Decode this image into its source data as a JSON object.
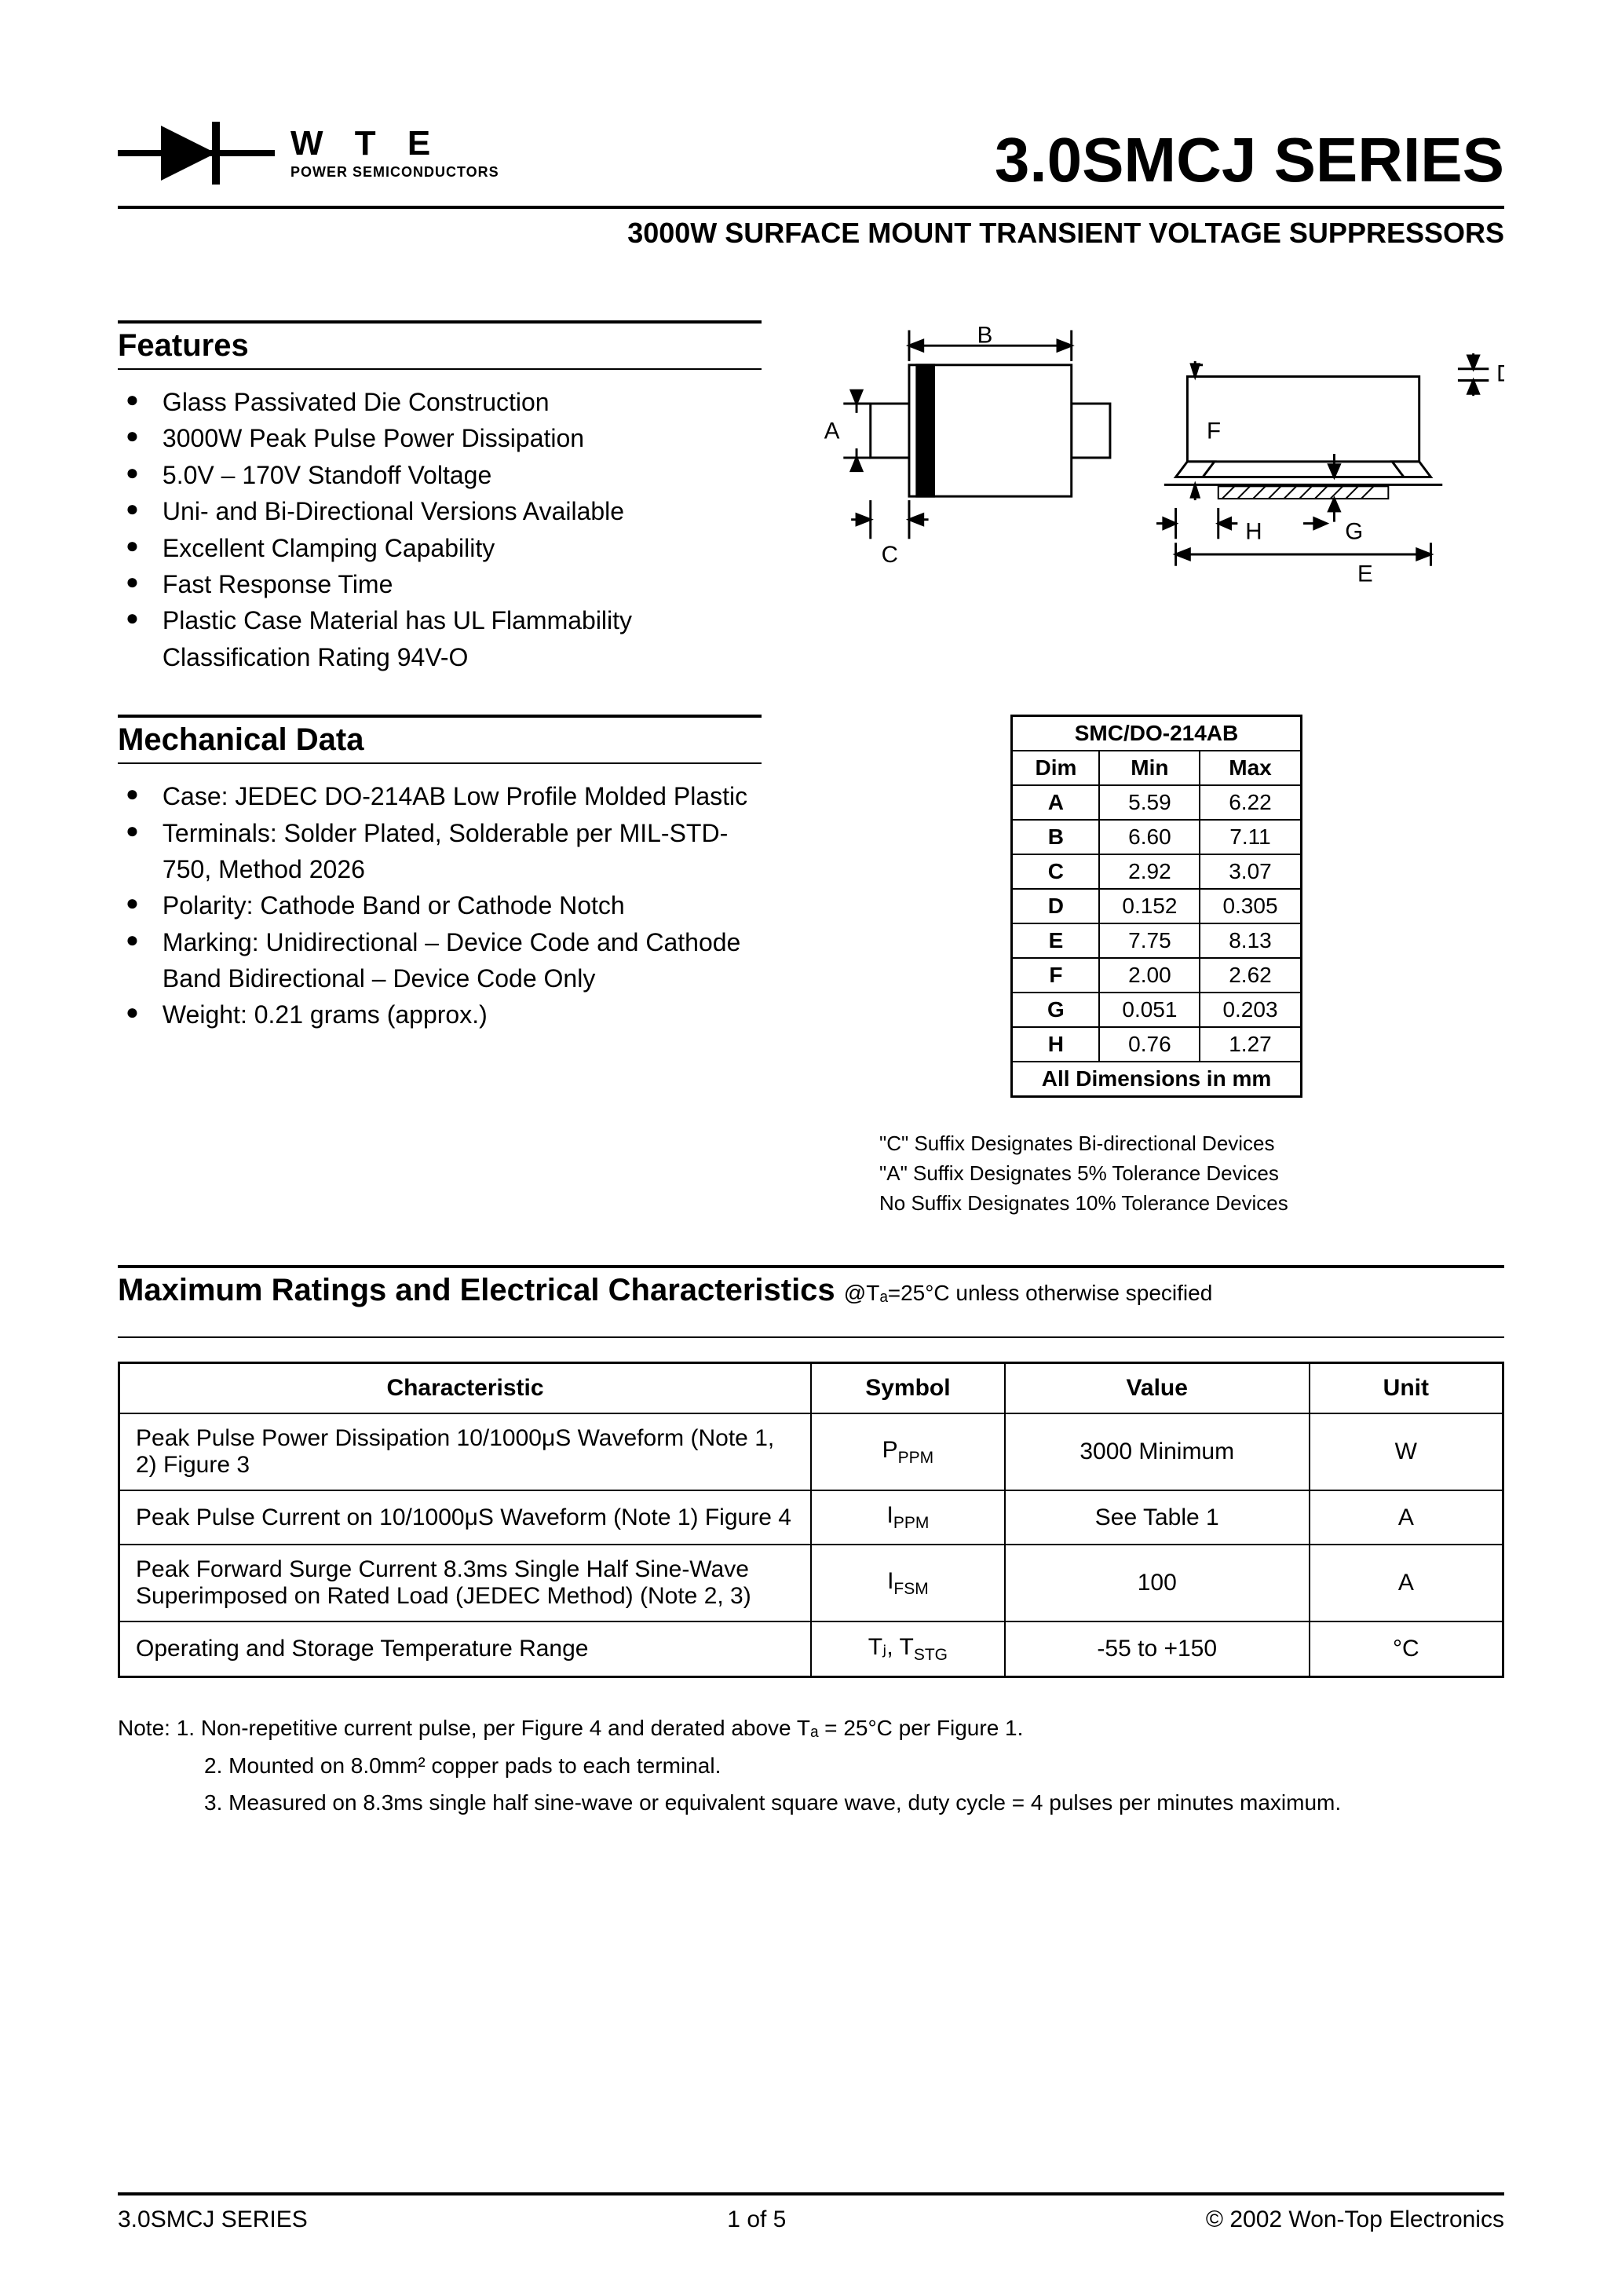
{
  "header": {
    "logo_label": "W T E",
    "logo_sub": "POWER SEMICONDUCTORS",
    "title": "3.0SMCJ SERIES",
    "subtitle": "3000W SURFACE MOUNT TRANSIENT VOLTAGE SUPPRESSORS"
  },
  "features": {
    "title": "Features",
    "items": [
      "Glass Passivated Die Construction",
      "3000W Peak Pulse Power Dissipation",
      "5.0V – 170V Standoff Voltage",
      "Uni- and Bi-Directional Versions Available",
      "Excellent Clamping Capability",
      "Fast Response Time",
      "Plastic Case Material has UL Flammability Classification Rating 94V-O"
    ]
  },
  "mechanical": {
    "title": "Mechanical Data",
    "items": [
      "Case: JEDEC DO-214AB Low Profile Molded Plastic",
      "Terminals: Solder Plated, Solderable per MIL-STD-750, Method 2026",
      "Polarity: Cathode Band or Cathode Notch",
      "Marking: Unidirectional – Device Code and Cathode Band Bidirectional – Device Code Only",
      "Weight: 0.21 grams (approx.)"
    ]
  },
  "diagram": {
    "labels": {
      "A": "A",
      "B": "B",
      "C": "C",
      "D": "D",
      "E": "E",
      "F": "F",
      "G": "G",
      "H": "H"
    },
    "stroke": "#000000",
    "fill_dark": "#000000",
    "fill_none": "#ffffff"
  },
  "dim_table": {
    "title": "SMC/DO-214AB",
    "columns": [
      "Dim",
      "Min",
      "Max"
    ],
    "rows": [
      [
        "A",
        "5.59",
        "6.22"
      ],
      [
        "B",
        "6.60",
        "7.11"
      ],
      [
        "C",
        "2.92",
        "3.07"
      ],
      [
        "D",
        "0.152",
        "0.305"
      ],
      [
        "E",
        "7.75",
        "8.13"
      ],
      [
        "F",
        "2.00",
        "2.62"
      ],
      [
        "G",
        "0.051",
        "0.203"
      ],
      [
        "H",
        "0.76",
        "1.27"
      ]
    ],
    "footer": "All Dimensions in mm"
  },
  "suffix_notes": [
    "\"C\" Suffix Designates Bi-directional Devices",
    "\"A\" Suffix Designates 5% Tolerance Devices",
    "No Suffix Designates 10% Tolerance Devices"
  ],
  "ratings": {
    "title": "Maximum Ratings and Electrical Characteristics",
    "condition": "@Tₐ=25°C unless otherwise specified",
    "columns": [
      "Characteristic",
      "Symbol",
      "Value",
      "Unit"
    ],
    "rows": [
      {
        "char": "Peak Pulse Power Dissipation 10/1000μS Waveform (Note 1, 2) Figure 3",
        "sym": "P",
        "sub": "PPM",
        "val": "3000 Minimum",
        "unit": "W"
      },
      {
        "char": "Peak Pulse Current on 10/1000μS Waveform (Note 1) Figure 4",
        "sym": "I",
        "sub": "PPM",
        "val": "See Table 1",
        "unit": "A"
      },
      {
        "char": "Peak Forward Surge Current 8.3ms Single Half Sine-Wave Superimposed on Rated Load (JEDEC Method) (Note 2, 3)",
        "sym": "I",
        "sub": "FSM",
        "val": "100",
        "unit": "A"
      },
      {
        "char": "Operating and Storage Temperature Range",
        "sym": "Tⱼ, T",
        "sub": "STG",
        "val": "-55 to +150",
        "unit": "°C"
      }
    ]
  },
  "notes": {
    "lead": "Note:",
    "items": [
      "1. Non-repetitive current pulse, per Figure 4 and derated above Tₐ = 25°C per Figure 1.",
      "2. Mounted on 8.0mm² copper pads to each terminal.",
      "3. Measured on 8.3ms single half sine-wave or equivalent square wave, duty cycle = 4 pulses per minutes maximum."
    ]
  },
  "footer": {
    "left": "3.0SMCJ SERIES",
    "center": "1  of  5",
    "right": "© 2002 Won-Top Electronics"
  },
  "colors": {
    "text": "#000000",
    "border": "#000000",
    "bg": "#ffffff"
  }
}
